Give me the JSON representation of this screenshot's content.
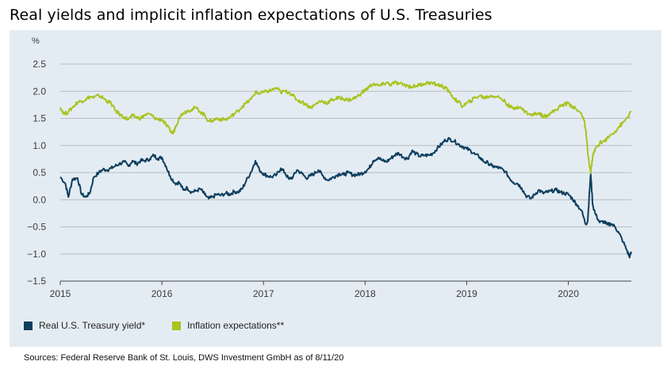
{
  "title": "Real yields and implicit inflation expectations of U.S. Treasuries",
  "source": "Sources: Federal Reserve Bank of St. Louis, DWS Investment GmbH as of 8/11/20",
  "chart_data": {
    "type": "line",
    "y_unit": "%",
    "ylim": [
      -1.5,
      2.5
    ],
    "y_ticks": [
      "2.5",
      "2.0",
      "1.5",
      "1.0",
      "0.5",
      "0.0",
      "-0.5",
      "-1.0",
      "-1.5"
    ],
    "xlim": [
      2015.0,
      2020.62
    ],
    "x_ticks": [
      "2015",
      "2016",
      "2017",
      "2018",
      "2019",
      "2020"
    ],
    "grid": true,
    "legend_position": "bottom-left",
    "series": [
      {
        "name": "Real U.S. Treasury yield*",
        "color": "#0d3e5e",
        "points": [
          [
            2015.0,
            0.42
          ],
          [
            2015.05,
            0.3
          ],
          [
            2015.08,
            0.05
          ],
          [
            2015.12,
            0.38
          ],
          [
            2015.17,
            0.4
          ],
          [
            2015.21,
            0.1
          ],
          [
            2015.25,
            0.05
          ],
          [
            2015.29,
            0.12
          ],
          [
            2015.33,
            0.42
          ],
          [
            2015.38,
            0.5
          ],
          [
            2015.42,
            0.56
          ],
          [
            2015.46,
            0.55
          ],
          [
            2015.5,
            0.58
          ],
          [
            2015.54,
            0.62
          ],
          [
            2015.58,
            0.66
          ],
          [
            2015.63,
            0.7
          ],
          [
            2015.67,
            0.62
          ],
          [
            2015.71,
            0.72
          ],
          [
            2015.75,
            0.66
          ],
          [
            2015.79,
            0.72
          ],
          [
            2015.83,
            0.72
          ],
          [
            2015.88,
            0.75
          ],
          [
            2015.92,
            0.82
          ],
          [
            2015.96,
            0.76
          ],
          [
            2016.0,
            0.78
          ],
          [
            2016.04,
            0.62
          ],
          [
            2016.08,
            0.44
          ],
          [
            2016.13,
            0.3
          ],
          [
            2016.17,
            0.32
          ],
          [
            2016.21,
            0.18
          ],
          [
            2016.25,
            0.22
          ],
          [
            2016.29,
            0.14
          ],
          [
            2016.33,
            0.16
          ],
          [
            2016.38,
            0.2
          ],
          [
            2016.42,
            0.1
          ],
          [
            2016.46,
            0.02
          ],
          [
            2016.5,
            0.05
          ],
          [
            2016.54,
            0.1
          ],
          [
            2016.58,
            0.08
          ],
          [
            2016.63,
            0.12
          ],
          [
            2016.67,
            0.1
          ],
          [
            2016.71,
            0.15
          ],
          [
            2016.75,
            0.14
          ],
          [
            2016.79,
            0.2
          ],
          [
            2016.83,
            0.35
          ],
          [
            2016.88,
            0.52
          ],
          [
            2016.92,
            0.72
          ],
          [
            2016.96,
            0.55
          ],
          [
            2017.0,
            0.48
          ],
          [
            2017.04,
            0.44
          ],
          [
            2017.08,
            0.42
          ],
          [
            2017.13,
            0.46
          ],
          [
            2017.17,
            0.58
          ],
          [
            2017.21,
            0.5
          ],
          [
            2017.25,
            0.38
          ],
          [
            2017.29,
            0.42
          ],
          [
            2017.33,
            0.55
          ],
          [
            2017.38,
            0.48
          ],
          [
            2017.42,
            0.4
          ],
          [
            2017.46,
            0.44
          ],
          [
            2017.5,
            0.48
          ],
          [
            2017.54,
            0.55
          ],
          [
            2017.58,
            0.45
          ],
          [
            2017.63,
            0.36
          ],
          [
            2017.67,
            0.4
          ],
          [
            2017.71,
            0.44
          ],
          [
            2017.75,
            0.48
          ],
          [
            2017.79,
            0.46
          ],
          [
            2017.83,
            0.5
          ],
          [
            2017.88,
            0.46
          ],
          [
            2017.92,
            0.46
          ],
          [
            2017.96,
            0.48
          ],
          [
            2018.0,
            0.52
          ],
          [
            2018.04,
            0.58
          ],
          [
            2018.08,
            0.72
          ],
          [
            2018.13,
            0.78
          ],
          [
            2018.17,
            0.72
          ],
          [
            2018.21,
            0.7
          ],
          [
            2018.25,
            0.76
          ],
          [
            2018.29,
            0.82
          ],
          [
            2018.33,
            0.86
          ],
          [
            2018.38,
            0.78
          ],
          [
            2018.42,
            0.76
          ],
          [
            2018.46,
            0.9
          ],
          [
            2018.5,
            0.85
          ],
          [
            2018.54,
            0.8
          ],
          [
            2018.58,
            0.82
          ],
          [
            2018.63,
            0.82
          ],
          [
            2018.67,
            0.86
          ],
          [
            2018.71,
            0.95
          ],
          [
            2018.75,
            1.02
          ],
          [
            2018.79,
            1.1
          ],
          [
            2018.83,
            1.12
          ],
          [
            2018.88,
            1.08
          ],
          [
            2018.92,
            1.02
          ],
          [
            2018.96,
            0.98
          ],
          [
            2019.0,
            0.94
          ],
          [
            2019.04,
            0.9
          ],
          [
            2019.08,
            0.84
          ],
          [
            2019.13,
            0.78
          ],
          [
            2019.17,
            0.7
          ],
          [
            2019.21,
            0.68
          ],
          [
            2019.25,
            0.62
          ],
          [
            2019.29,
            0.6
          ],
          [
            2019.33,
            0.58
          ],
          [
            2019.38,
            0.52
          ],
          [
            2019.42,
            0.4
          ],
          [
            2019.46,
            0.32
          ],
          [
            2019.5,
            0.3
          ],
          [
            2019.54,
            0.22
          ],
          [
            2019.58,
            0.08
          ],
          [
            2019.63,
            0.02
          ],
          [
            2019.67,
            0.1
          ],
          [
            2019.71,
            0.18
          ],
          [
            2019.75,
            0.12
          ],
          [
            2019.79,
            0.14
          ],
          [
            2019.83,
            0.16
          ],
          [
            2019.88,
            0.18
          ],
          [
            2019.92,
            0.14
          ],
          [
            2019.96,
            0.12
          ],
          [
            2020.0,
            0.1
          ],
          [
            2020.04,
            0.02
          ],
          [
            2020.08,
            -0.08
          ],
          [
            2020.13,
            -0.2
          ],
          [
            2020.17,
            -0.45
          ],
          [
            2020.19,
            -0.4
          ],
          [
            2020.21,
            0.2
          ],
          [
            2020.22,
            0.48
          ],
          [
            2020.24,
            -0.1
          ],
          [
            2020.27,
            -0.28
          ],
          [
            2020.31,
            -0.42
          ],
          [
            2020.35,
            -0.4
          ],
          [
            2020.38,
            -0.46
          ],
          [
            2020.42,
            -0.44
          ],
          [
            2020.46,
            -0.5
          ],
          [
            2020.5,
            -0.62
          ],
          [
            2020.54,
            -0.78
          ],
          [
            2020.58,
            -0.95
          ],
          [
            2020.6,
            -1.05
          ],
          [
            2020.62,
            -0.98
          ]
        ]
      },
      {
        "name": "Inflation expectations**",
        "color": "#a9c31f",
        "points": [
          [
            2015.0,
            1.7
          ],
          [
            2015.04,
            1.58
          ],
          [
            2015.08,
            1.62
          ],
          [
            2015.13,
            1.72
          ],
          [
            2015.17,
            1.8
          ],
          [
            2015.21,
            1.82
          ],
          [
            2015.25,
            1.85
          ],
          [
            2015.29,
            1.9
          ],
          [
            2015.33,
            1.88
          ],
          [
            2015.38,
            1.92
          ],
          [
            2015.42,
            1.88
          ],
          [
            2015.46,
            1.82
          ],
          [
            2015.5,
            1.78
          ],
          [
            2015.54,
            1.65
          ],
          [
            2015.58,
            1.58
          ],
          [
            2015.63,
            1.52
          ],
          [
            2015.67,
            1.48
          ],
          [
            2015.71,
            1.55
          ],
          [
            2015.75,
            1.52
          ],
          [
            2015.79,
            1.5
          ],
          [
            2015.83,
            1.56
          ],
          [
            2015.88,
            1.58
          ],
          [
            2015.92,
            1.52
          ],
          [
            2015.96,
            1.48
          ],
          [
            2016.0,
            1.48
          ],
          [
            2016.04,
            1.38
          ],
          [
            2016.08,
            1.28
          ],
          [
            2016.11,
            1.22
          ],
          [
            2016.13,
            1.32
          ],
          [
            2016.17,
            1.52
          ],
          [
            2016.21,
            1.6
          ],
          [
            2016.25,
            1.64
          ],
          [
            2016.29,
            1.66
          ],
          [
            2016.33,
            1.7
          ],
          [
            2016.38,
            1.62
          ],
          [
            2016.42,
            1.56
          ],
          [
            2016.46,
            1.45
          ],
          [
            2016.5,
            1.46
          ],
          [
            2016.54,
            1.5
          ],
          [
            2016.58,
            1.48
          ],
          [
            2016.63,
            1.48
          ],
          [
            2016.67,
            1.52
          ],
          [
            2016.71,
            1.58
          ],
          [
            2016.75,
            1.64
          ],
          [
            2016.79,
            1.72
          ],
          [
            2016.83,
            1.78
          ],
          [
            2016.88,
            1.86
          ],
          [
            2016.92,
            1.98
          ],
          [
            2016.96,
            1.96
          ],
          [
            2017.0,
            1.98
          ],
          [
            2017.04,
            2.0
          ],
          [
            2017.08,
            2.02
          ],
          [
            2017.13,
            2.06
          ],
          [
            2017.17,
            1.98
          ],
          [
            2017.21,
            2.0
          ],
          [
            2017.25,
            1.98
          ],
          [
            2017.29,
            1.92
          ],
          [
            2017.33,
            1.84
          ],
          [
            2017.38,
            1.8
          ],
          [
            2017.42,
            1.76
          ],
          [
            2017.46,
            1.7
          ],
          [
            2017.5,
            1.74
          ],
          [
            2017.54,
            1.8
          ],
          [
            2017.58,
            1.82
          ],
          [
            2017.63,
            1.78
          ],
          [
            2017.67,
            1.84
          ],
          [
            2017.71,
            1.86
          ],
          [
            2017.75,
            1.88
          ],
          [
            2017.79,
            1.86
          ],
          [
            2017.83,
            1.84
          ],
          [
            2017.88,
            1.86
          ],
          [
            2017.92,
            1.9
          ],
          [
            2017.96,
            1.96
          ],
          [
            2018.0,
            2.02
          ],
          [
            2018.04,
            2.08
          ],
          [
            2018.08,
            2.14
          ],
          [
            2018.13,
            2.1
          ],
          [
            2018.17,
            2.12
          ],
          [
            2018.21,
            2.16
          ],
          [
            2018.25,
            2.12
          ],
          [
            2018.29,
            2.16
          ],
          [
            2018.33,
            2.14
          ],
          [
            2018.38,
            2.12
          ],
          [
            2018.42,
            2.1
          ],
          [
            2018.46,
            2.08
          ],
          [
            2018.5,
            2.1
          ],
          [
            2018.54,
            2.12
          ],
          [
            2018.58,
            2.14
          ],
          [
            2018.63,
            2.16
          ],
          [
            2018.67,
            2.14
          ],
          [
            2018.71,
            2.12
          ],
          [
            2018.75,
            2.1
          ],
          [
            2018.79,
            2.06
          ],
          [
            2018.83,
            1.98
          ],
          [
            2018.88,
            1.86
          ],
          [
            2018.92,
            1.8
          ],
          [
            2018.96,
            1.72
          ],
          [
            2019.0,
            1.78
          ],
          [
            2019.04,
            1.82
          ],
          [
            2019.08,
            1.88
          ],
          [
            2019.13,
            1.92
          ],
          [
            2019.17,
            1.88
          ],
          [
            2019.21,
            1.9
          ],
          [
            2019.25,
            1.92
          ],
          [
            2019.29,
            1.9
          ],
          [
            2019.33,
            1.88
          ],
          [
            2019.38,
            1.8
          ],
          [
            2019.42,
            1.72
          ],
          [
            2019.46,
            1.68
          ],
          [
            2019.5,
            1.72
          ],
          [
            2019.54,
            1.68
          ],
          [
            2019.58,
            1.62
          ],
          [
            2019.63,
            1.56
          ],
          [
            2019.67,
            1.58
          ],
          [
            2019.71,
            1.6
          ],
          [
            2019.75,
            1.54
          ],
          [
            2019.79,
            1.56
          ],
          [
            2019.83,
            1.6
          ],
          [
            2019.88,
            1.66
          ],
          [
            2019.92,
            1.72
          ],
          [
            2019.96,
            1.76
          ],
          [
            2020.0,
            1.78
          ],
          [
            2020.04,
            1.72
          ],
          [
            2020.08,
            1.66
          ],
          [
            2020.13,
            1.58
          ],
          [
            2020.15,
            1.5
          ],
          [
            2020.17,
            1.3
          ],
          [
            2020.19,
            0.9
          ],
          [
            2020.21,
            0.6
          ],
          [
            2020.22,
            0.5
          ],
          [
            2020.24,
            0.8
          ],
          [
            2020.27,
            0.95
          ],
          [
            2020.31,
            1.05
          ],
          [
            2020.35,
            1.08
          ],
          [
            2020.38,
            1.12
          ],
          [
            2020.42,
            1.2
          ],
          [
            2020.46,
            1.26
          ],
          [
            2020.5,
            1.35
          ],
          [
            2020.54,
            1.42
          ],
          [
            2020.58,
            1.52
          ],
          [
            2020.62,
            1.62
          ]
        ]
      }
    ]
  }
}
